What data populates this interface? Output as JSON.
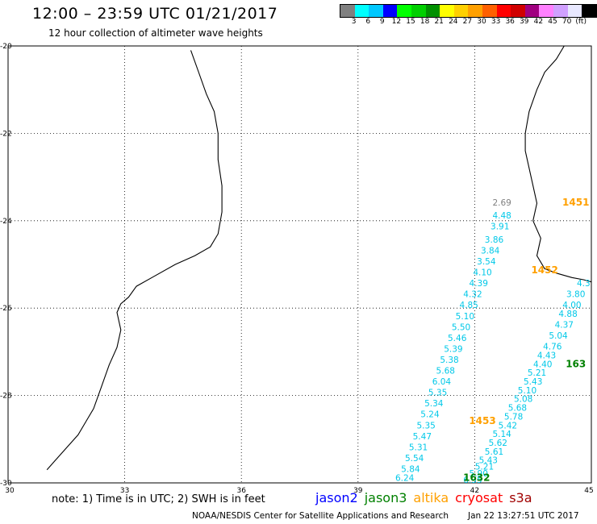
{
  "header": {
    "title": "12:00 – 23:59 UTC 01/21/2017",
    "subtitle": "12 hour collection of altimeter wave heights"
  },
  "colorbar": {
    "colors": [
      "#808080",
      "#00ffff",
      "#00c8ff",
      "#0000ff",
      "#00ff00",
      "#00d000",
      "#009000",
      "#ffff00",
      "#ffd000",
      "#ffa000",
      "#ff6000",
      "#ff0000",
      "#d00000",
      "#a00080",
      "#ff80ff",
      "#d0a0ff",
      "#e8e8ff",
      "#000000"
    ],
    "labels": [
      "3",
      "6",
      "9",
      "12",
      "15",
      "18",
      "21",
      "24",
      "27",
      "30",
      "33",
      "36",
      "39",
      "42",
      "45",
      "70",
      "(ft)"
    ]
  },
  "axes": {
    "x_ticks": [
      "30",
      "33",
      "36",
      "39",
      "42",
      "45"
    ],
    "y_ticks": [
      "-20",
      "-22",
      "-24",
      "-26",
      "-28",
      "-30"
    ],
    "x_range": [
      30,
      45
    ],
    "y_range": [
      -30,
      -20
    ]
  },
  "satellites": [
    {
      "name": "jason2",
      "color": "#0000ff"
    },
    {
      "name": "jason3",
      "color": "#008000"
    },
    {
      "name": "altika",
      "color": "#ffa000"
    },
    {
      "name": "cryosat",
      "color": "#ff0000"
    },
    {
      "name": "s3a",
      "color": "#a00000"
    }
  ],
  "track_time_labels": [
    {
      "text": "1451",
      "lon": 44.6,
      "lat": -23.65,
      "color": "#ffa000"
    },
    {
      "text": "1452",
      "lon": 43.8,
      "lat": -25.2,
      "color": "#ffa000"
    },
    {
      "text": "1453",
      "lon": 42.2,
      "lat": -28.65,
      "color": "#ffa000"
    },
    {
      "text": "163",
      "lon": 44.6,
      "lat": -27.35,
      "color": "#008000"
    },
    {
      "text": "1632",
      "lon": 42.05,
      "lat": -29.95,
      "color": "#008000"
    }
  ],
  "wave_tracks": [
    {
      "color": "#00c8e8",
      "points": [
        {
          "v": "2.69",
          "lon": 42.7,
          "lat": -23.65,
          "color": "#808080"
        },
        {
          "v": "4.48",
          "lon": 42.7,
          "lat": -23.95
        },
        {
          "v": "3.91",
          "lon": 42.65,
          "lat": -24.2
        },
        {
          "v": "3.86",
          "lon": 42.5,
          "lat": -24.5
        },
        {
          "v": "3.84",
          "lon": 42.4,
          "lat": -24.75
        },
        {
          "v": "3.54",
          "lon": 42.3,
          "lat": -25.0
        },
        {
          "v": "4.10",
          "lon": 42.2,
          "lat": -25.25
        },
        {
          "v": "4.39",
          "lon": 42.1,
          "lat": -25.5
        },
        {
          "v": "4.32",
          "lon": 41.95,
          "lat": -25.75
        },
        {
          "v": "4.85",
          "lon": 41.85,
          "lat": -26.0
        },
        {
          "v": "5.10",
          "lon": 41.75,
          "lat": -26.25
        },
        {
          "v": "5.50",
          "lon": 41.65,
          "lat": -26.5
        },
        {
          "v": "5.46",
          "lon": 41.55,
          "lat": -26.75
        },
        {
          "v": "5.39",
          "lon": 41.45,
          "lat": -27.0
        },
        {
          "v": "5.38",
          "lon": 41.35,
          "lat": -27.25
        },
        {
          "v": "5.68",
          "lon": 41.25,
          "lat": -27.5
        },
        {
          "v": "6.04",
          "lon": 41.15,
          "lat": -27.75
        },
        {
          "v": "5.35",
          "lon": 41.05,
          "lat": -28.0
        },
        {
          "v": "5.34",
          "lon": 40.95,
          "lat": -28.25
        },
        {
          "v": "5.24",
          "lon": 40.85,
          "lat": -28.5
        },
        {
          "v": "5.35",
          "lon": 40.75,
          "lat": -28.75
        },
        {
          "v": "5.47",
          "lon": 40.65,
          "lat": -29.0
        },
        {
          "v": "5.31",
          "lon": 40.55,
          "lat": -29.25
        },
        {
          "v": "5.54",
          "lon": 40.45,
          "lat": -29.5
        },
        {
          "v": "5.84",
          "lon": 40.35,
          "lat": -29.75
        },
        {
          "v": "6.24",
          "lon": 40.2,
          "lat": -29.95
        }
      ]
    },
    {
      "color": "#00c8e8",
      "points": [
        {
          "v": "4.3",
          "lon": 44.8,
          "lat": -25.5
        },
        {
          "v": "3.80",
          "lon": 44.6,
          "lat": -25.75
        },
        {
          "v": "4.00",
          "lon": 44.5,
          "lat": -26.0
        },
        {
          "v": "4.88",
          "lon": 44.4,
          "lat": -26.2
        },
        {
          "v": "4.37",
          "lon": 44.3,
          "lat": -26.45
        },
        {
          "v": "5.04",
          "lon": 44.15,
          "lat": -26.7
        },
        {
          "v": "4.76",
          "lon": 44.0,
          "lat": -26.95
        },
        {
          "v": "4.43",
          "lon": 43.85,
          "lat": -27.15
        },
        {
          "v": "4.40",
          "lon": 43.75,
          "lat": -27.35
        },
        {
          "v": "5.21",
          "lon": 43.6,
          "lat": -27.55
        },
        {
          "v": "5.43",
          "lon": 43.5,
          "lat": -27.75
        },
        {
          "v": "5.10",
          "lon": 43.35,
          "lat": -27.95
        },
        {
          "v": "5.08",
          "lon": 43.25,
          "lat": -28.15
        },
        {
          "v": "5.68",
          "lon": 43.1,
          "lat": -28.35
        },
        {
          "v": "5.78",
          "lon": 43.0,
          "lat": -28.55
        },
        {
          "v": "5.42",
          "lon": 42.85,
          "lat": -28.75
        },
        {
          "v": "5.14",
          "lon": 42.7,
          "lat": -28.95
        },
        {
          "v": "5.62",
          "lon": 42.6,
          "lat": -29.15
        },
        {
          "v": "5.61",
          "lon": 42.5,
          "lat": -29.35
        },
        {
          "v": "5.43",
          "lon": 42.35,
          "lat": -29.55
        },
        {
          "v": "5.21",
          "lon": 42.25,
          "lat": -29.7
        },
        {
          "v": "5.90",
          "lon": 42.1,
          "lat": -29.85
        },
        {
          "v": "6.35",
          "lon": 41.95,
          "lat": -30.0
        }
      ]
    }
  ],
  "coastlines": {
    "africa": [
      [
        31.0,
        -29.7
      ],
      [
        31.2,
        -29.5
      ],
      [
        31.5,
        -29.2
      ],
      [
        31.8,
        -28.9
      ],
      [
        32.0,
        -28.6
      ],
      [
        32.2,
        -28.3
      ],
      [
        32.4,
        -27.8
      ],
      [
        32.6,
        -27.3
      ],
      [
        32.8,
        -26.9
      ],
      [
        32.9,
        -26.5
      ],
      [
        32.8,
        -26.1
      ],
      [
        32.9,
        -25.9
      ],
      [
        33.1,
        -25.75
      ],
      [
        33.3,
        -25.5
      ],
      [
        33.7,
        -25.3
      ],
      [
        34.3,
        -25.0
      ],
      [
        34.8,
        -24.8
      ],
      [
        35.2,
        -24.6
      ],
      [
        35.4,
        -24.3
      ],
      [
        35.5,
        -23.8
      ],
      [
        35.5,
        -23.2
      ],
      [
        35.4,
        -22.6
      ],
      [
        35.4,
        -22.0
      ],
      [
        35.3,
        -21.5
      ],
      [
        35.1,
        -21.1
      ],
      [
        34.9,
        -20.6
      ],
      [
        34.7,
        -20.1
      ]
    ],
    "madagascar": [
      [
        45.0,
        -25.4
      ],
      [
        44.8,
        -25.35
      ],
      [
        44.5,
        -25.3
      ],
      [
        44.1,
        -25.2
      ],
      [
        43.8,
        -25.1
      ],
      [
        43.6,
        -24.8
      ],
      [
        43.7,
        -24.4
      ],
      [
        43.5,
        -24.0
      ],
      [
        43.6,
        -23.6
      ],
      [
        43.5,
        -23.2
      ],
      [
        43.4,
        -22.8
      ],
      [
        43.3,
        -22.4
      ],
      [
        43.3,
        -22.0
      ],
      [
        43.4,
        -21.5
      ],
      [
        43.6,
        -21.0
      ],
      [
        43.8,
        -20.6
      ],
      [
        44.1,
        -20.3
      ],
      [
        44.3,
        -20.0
      ]
    ]
  },
  "footnote": "note: 1) Time is in UTC; 2) SWH is in feet",
  "credit": "NOAA/NESDIS Center for Satellite Applications and Research",
  "timestamp": "Jan 22 13:27:51 UTC 2017"
}
